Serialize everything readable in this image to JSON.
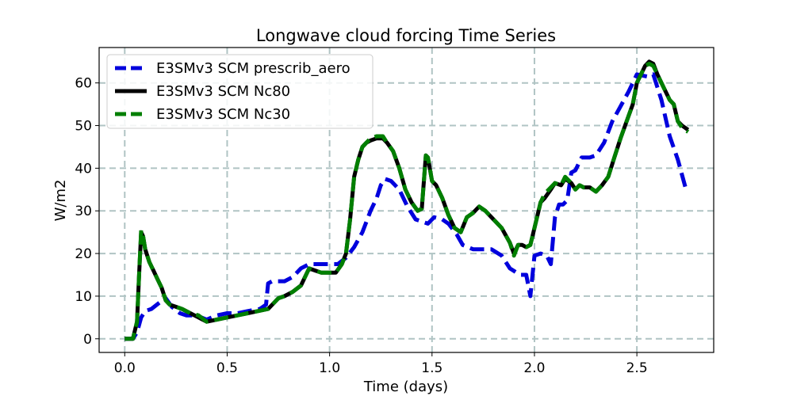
{
  "chart_data": {
    "type": "line",
    "title": "Longwave cloud forcing Time Series",
    "xlabel": "Time (days)",
    "ylabel": "W/m2",
    "xlim": [
      -0.125,
      2.875
    ],
    "ylim": [
      -3.2,
      68.3
    ],
    "xticks": [
      0.0,
      0.5,
      1.0,
      1.5,
      2.0,
      2.5
    ],
    "xtick_labels": [
      "0.0",
      "0.5",
      "1.0",
      "1.5",
      "2.0",
      "2.5"
    ],
    "yticks": [
      0,
      10,
      20,
      30,
      40,
      50,
      60
    ],
    "ytick_labels": [
      "0",
      "10",
      "20",
      "30",
      "40",
      "50",
      "60"
    ],
    "grid": true,
    "legend_position": "top-left",
    "series": [
      {
        "name": "E3SMv3 SCM prescrib_aero",
        "color": "#0000dd",
        "style": "dashed",
        "x": [
          0.0,
          0.04,
          0.06,
          0.08,
          0.1,
          0.13,
          0.17,
          0.2,
          0.23,
          0.27,
          0.3,
          0.35,
          0.4,
          0.45,
          0.5,
          0.55,
          0.6,
          0.66,
          0.69,
          0.7,
          0.72,
          0.75,
          0.78,
          0.82,
          0.86,
          0.9,
          0.95,
          1.0,
          1.04,
          1.08,
          1.12,
          1.16,
          1.2,
          1.23,
          1.25,
          1.27,
          1.3,
          1.34,
          1.38,
          1.42,
          1.45,
          1.48,
          1.51,
          1.55,
          1.58,
          1.62,
          1.65,
          1.7,
          1.75,
          1.79,
          1.84,
          1.88,
          1.93,
          1.96,
          1.98,
          2.0,
          2.03,
          2.06,
          2.08,
          2.1,
          2.12,
          2.14,
          2.16,
          2.18,
          2.2,
          2.23,
          2.27,
          2.3,
          2.34,
          2.38,
          2.42,
          2.46,
          2.5,
          2.55,
          2.58,
          2.62,
          2.66,
          2.7,
          2.74
        ],
        "values": [
          0,
          0,
          1.5,
          5,
          6.5,
          7,
          8.5,
          9.5,
          7.5,
          6,
          5.5,
          5.5,
          4.5,
          5.5,
          6,
          6,
          6.5,
          7,
          8,
          13,
          13.5,
          13.5,
          13.5,
          14.5,
          16.5,
          17.5,
          17.5,
          17.5,
          17.5,
          19,
          21.5,
          25,
          30,
          33,
          36,
          37.5,
          37,
          35,
          31,
          28,
          27.5,
          27,
          28.5,
          28,
          27,
          24.5,
          22,
          21,
          21,
          21,
          19.5,
          16.5,
          15,
          15,
          10,
          19.5,
          20,
          19.5,
          17.5,
          28.5,
          31.5,
          31.5,
          32.5,
          39,
          39.5,
          42.5,
          42.5,
          43,
          46,
          51,
          54.5,
          58,
          62,
          61.5,
          62,
          56,
          47.5,
          42,
          35
        ]
      },
      {
        "name": "E3SMv3 SCM Nc80",
        "color": "#000000",
        "style": "solid",
        "x": [
          0.0,
          0.02,
          0.04,
          0.06,
          0.07,
          0.08,
          0.09,
          0.1,
          0.12,
          0.14,
          0.16,
          0.18,
          0.2,
          0.22,
          0.25,
          0.28,
          0.32,
          0.36,
          0.4,
          0.45,
          0.5,
          0.55,
          0.6,
          0.65,
          0.7,
          0.72,
          0.75,
          0.78,
          0.82,
          0.86,
          0.9,
          0.93,
          0.96,
          1.0,
          1.03,
          1.06,
          1.08,
          1.1,
          1.12,
          1.14,
          1.16,
          1.18,
          1.2,
          1.23,
          1.26,
          1.28,
          1.31,
          1.34,
          1.37,
          1.4,
          1.43,
          1.45,
          1.47,
          1.48,
          1.5,
          1.52,
          1.55,
          1.58,
          1.61,
          1.64,
          1.67,
          1.7,
          1.73,
          1.76,
          1.8,
          1.84,
          1.88,
          1.9,
          1.92,
          1.94,
          1.96,
          1.98,
          2.0,
          2.03,
          2.05,
          2.08,
          2.1,
          2.13,
          2.15,
          2.18,
          2.2,
          2.22,
          2.24,
          2.27,
          2.3,
          2.33,
          2.36,
          2.39,
          2.42,
          2.45,
          2.48,
          2.5,
          2.52,
          2.54,
          2.56,
          2.58,
          2.6,
          2.63,
          2.66,
          2.68,
          2.7,
          2.72,
          2.75
        ],
        "values": [
          0,
          0,
          0,
          4,
          15,
          25,
          24,
          21,
          18,
          16,
          14,
          12,
          9,
          8,
          7.5,
          7,
          6,
          5,
          4,
          4.5,
          5,
          5.5,
          6,
          6.5,
          7,
          8,
          9.5,
          10,
          11,
          12.5,
          16.5,
          16,
          15.5,
          15.5,
          15.5,
          17.5,
          20,
          28,
          38,
          42,
          45,
          46,
          46.5,
          47,
          47,
          46,
          44,
          40,
          35,
          32,
          30,
          30.5,
          43,
          42.5,
          37,
          36,
          33,
          29,
          26,
          25,
          28.5,
          29.5,
          31,
          30,
          28,
          26,
          22.5,
          20,
          22,
          22,
          21.5,
          22,
          26,
          32,
          33,
          35,
          36.5,
          36,
          37.5,
          36.5,
          35,
          36,
          35.5,
          35.5,
          34.5,
          36,
          38,
          42.5,
          47,
          51,
          55,
          60,
          62,
          64,
          65,
          64.5,
          62,
          59,
          56,
          55,
          51,
          50,
          49
        ]
      },
      {
        "name": "E3SMv3 SCM Nc30",
        "color": "#007f00",
        "style": "dashed",
        "x": [
          0.0,
          0.02,
          0.04,
          0.06,
          0.07,
          0.08,
          0.09,
          0.1,
          0.12,
          0.14,
          0.16,
          0.18,
          0.2,
          0.22,
          0.25,
          0.28,
          0.32,
          0.36,
          0.4,
          0.45,
          0.5,
          0.55,
          0.6,
          0.65,
          0.7,
          0.72,
          0.75,
          0.78,
          0.82,
          0.86,
          0.9,
          0.93,
          0.96,
          1.0,
          1.03,
          1.06,
          1.08,
          1.1,
          1.12,
          1.14,
          1.16,
          1.18,
          1.2,
          1.23,
          1.26,
          1.28,
          1.31,
          1.34,
          1.37,
          1.4,
          1.43,
          1.45,
          1.47,
          1.48,
          1.5,
          1.52,
          1.55,
          1.58,
          1.61,
          1.64,
          1.67,
          1.7,
          1.73,
          1.76,
          1.8,
          1.84,
          1.88,
          1.9,
          1.92,
          1.94,
          1.96,
          1.98,
          2.0,
          2.03,
          2.05,
          2.08,
          2.1,
          2.13,
          2.15,
          2.18,
          2.2,
          2.22,
          2.24,
          2.27,
          2.3,
          2.33,
          2.36,
          2.39,
          2.42,
          2.45,
          2.48,
          2.5,
          2.52,
          2.54,
          2.56,
          2.58,
          2.6,
          2.63,
          2.66,
          2.68,
          2.7,
          2.72,
          2.75
        ],
        "values": [
          0,
          0,
          0,
          4,
          15,
          25.5,
          24,
          21,
          18,
          16,
          14,
          12,
          9,
          8,
          7.5,
          7,
          6,
          5.5,
          4,
          4.5,
          5,
          5.5,
          6,
          6.5,
          7,
          8,
          9.5,
          10,
          11,
          12.5,
          16.5,
          16,
          15.5,
          15.5,
          15.5,
          17.5,
          20,
          28,
          38,
          42,
          45,
          46,
          47,
          47.5,
          47.5,
          46,
          44,
          40,
          35,
          32,
          30,
          30.5,
          43,
          42.5,
          37,
          36,
          33,
          29,
          26,
          25,
          28.5,
          29.5,
          31,
          30,
          28,
          26,
          22.5,
          19.5,
          22,
          22,
          21.5,
          22,
          26,
          32,
          34,
          35.5,
          36.5,
          36,
          38,
          36.5,
          35,
          36,
          35.5,
          35.5,
          34.5,
          36,
          38,
          42.5,
          47,
          51,
          55,
          60,
          62,
          64,
          64.5,
          64,
          62,
          59,
          56,
          55,
          51,
          49.5,
          48.5
        ]
      }
    ]
  }
}
